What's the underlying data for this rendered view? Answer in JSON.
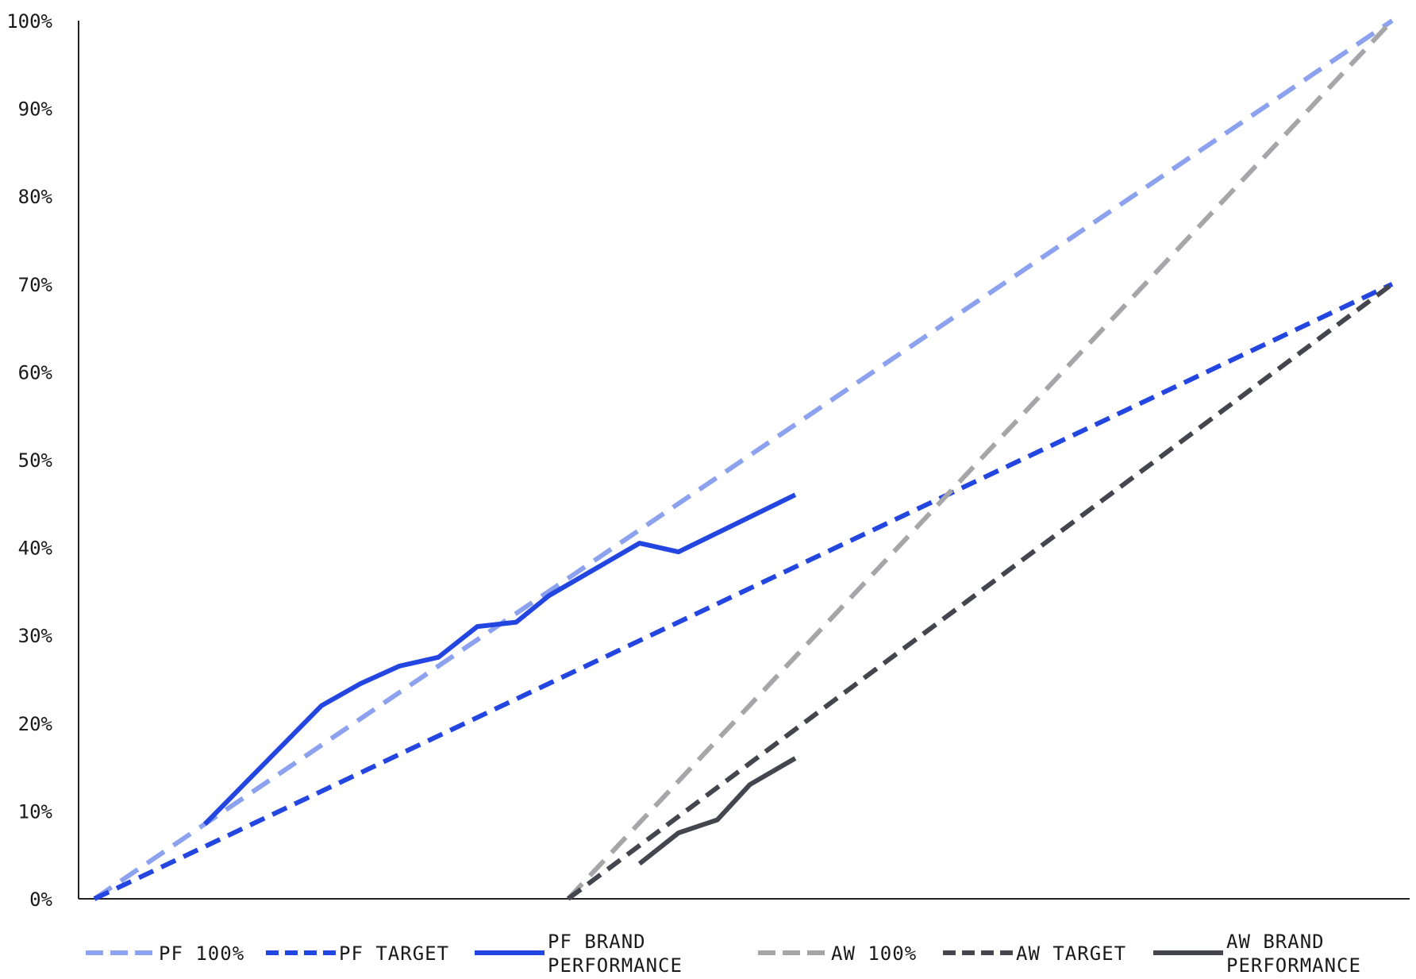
{
  "chart_data": {
    "type": "line",
    "title": "",
    "xlabel": "",
    "ylabel": "",
    "x_range": [
      0,
      100
    ],
    "ylim": [
      0,
      100
    ],
    "y_ticks": [
      {
        "value": 0,
        "label": "0%"
      },
      {
        "value": 10,
        "label": "10%"
      },
      {
        "value": 20,
        "label": "20%"
      },
      {
        "value": 30,
        "label": "30%"
      },
      {
        "value": 40,
        "label": "40%"
      },
      {
        "value": 50,
        "label": "50%"
      },
      {
        "value": 60,
        "label": "60%"
      },
      {
        "value": 70,
        "label": "70%"
      },
      {
        "value": 80,
        "label": "80%"
      },
      {
        "value": 90,
        "label": "90%"
      },
      {
        "value": 100,
        "label": "100%"
      }
    ],
    "grid": false,
    "legend_position": "bottom",
    "series": [
      {
        "id": "pf-100",
        "name": "PF 100%",
        "label_lines": [
          "PF 100%"
        ],
        "color": "#8da2ee",
        "style": "long-dash",
        "points": [
          [
            0,
            0
          ],
          [
            100,
            100
          ]
        ]
      },
      {
        "id": "pf-target",
        "name": "PF TARGET",
        "label_lines": [
          "PF TARGET"
        ],
        "color": "#2446e0",
        "style": "dash",
        "points": [
          [
            0,
            0
          ],
          [
            100,
            70
          ]
        ]
      },
      {
        "id": "pf-brand",
        "name": "PF BRAND PERFORMANCE",
        "label_lines": [
          "PF BRAND",
          "PERFORMANCE"
        ],
        "color": "#2446e0",
        "style": "solid",
        "points": [
          [
            8.5,
            8.5
          ],
          [
            11.5,
            13
          ],
          [
            17.5,
            22
          ],
          [
            20.5,
            24.5
          ],
          [
            23.5,
            26.5
          ],
          [
            26.5,
            27.5
          ],
          [
            29.5,
            31
          ],
          [
            32.5,
            31.5
          ],
          [
            35,
            34.5
          ],
          [
            42,
            40.5
          ],
          [
            45,
            39.5
          ],
          [
            54,
            46
          ]
        ]
      },
      {
        "id": "aw-100",
        "name": "AW 100%",
        "label_lines": [
          "AW 100%"
        ],
        "color": "#a6a6a8",
        "style": "long-dash",
        "points": [
          [
            36.5,
            0
          ],
          [
            100,
            100
          ]
        ]
      },
      {
        "id": "aw-target",
        "name": "AW TARGET",
        "label_lines": [
          "AW TARGET"
        ],
        "color": "#45454e",
        "style": "dash",
        "points": [
          [
            36.5,
            0
          ],
          [
            100,
            70
          ]
        ]
      },
      {
        "id": "aw-brand",
        "name": "AW BRAND PERFORMANCE",
        "label_lines": [
          "AW BRAND",
          "PERFORMANCE"
        ],
        "color": "#45454e",
        "style": "solid",
        "points": [
          [
            42,
            4
          ],
          [
            45,
            7.5
          ],
          [
            48,
            9
          ],
          [
            50.5,
            13
          ],
          [
            54,
            16
          ]
        ]
      }
    ]
  }
}
